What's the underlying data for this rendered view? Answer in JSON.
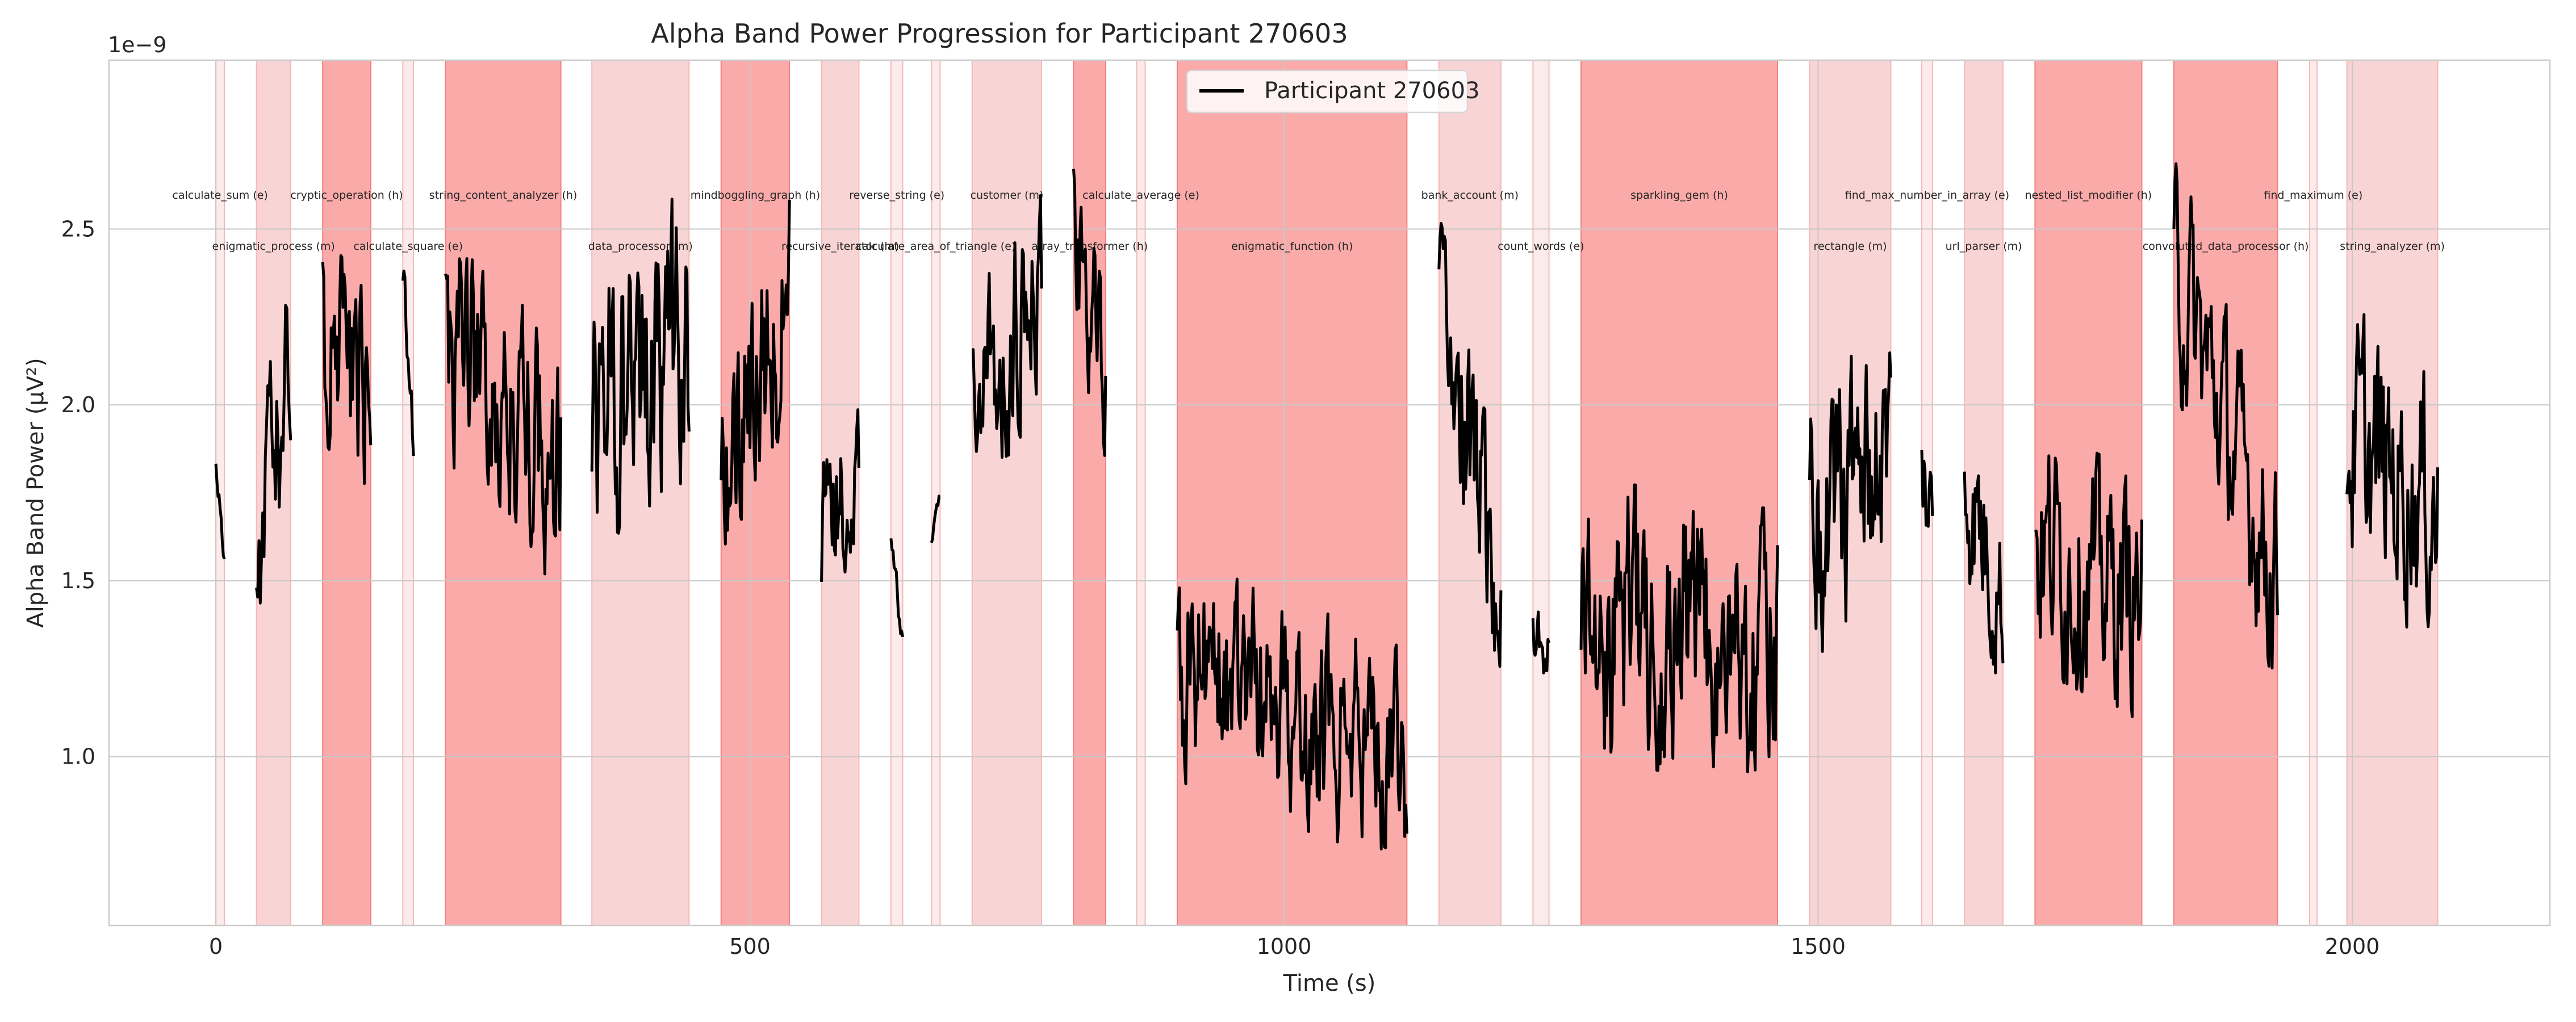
{
  "chart_data": {
    "type": "line",
    "title": "Alpha Band Power Progression for Participant 270603",
    "xlabel": "Time (s)",
    "ylabel": "Alpha Band Power (µV²)",
    "y_offset_label": "1e−9",
    "xlim": [
      -100,
      2185
    ],
    "ylim": [
      0.52,
      2.98
    ],
    "x_ticks": [
      0,
      500,
      1000,
      1500,
      2000
    ],
    "y_ticks": [
      1.0,
      1.5,
      2.0,
      2.5
    ],
    "x_tick_labels": [
      "0",
      "500",
      "1000",
      "1500",
      "2000"
    ],
    "y_tick_labels": [
      "1.0",
      "1.5",
      "2.0",
      "2.5"
    ],
    "grid": true,
    "legend": {
      "placement": "top-center",
      "entries": [
        "Participant 270603"
      ]
    },
    "colors": {
      "line": "#000000",
      "easy": "#fdeaea",
      "medium": "#f9d4d4",
      "hard": "#fbaaaa",
      "hard_edge": "#f28080",
      "grid": "#c8c8c8"
    },
    "tasks": [
      {
        "label": "calculate_sum (e)",
        "start": 0,
        "end": 8,
        "difficulty": "e",
        "row": 0
      },
      {
        "label": "enigmatic_process (m)",
        "start": 38,
        "end": 70,
        "difficulty": "m",
        "row": 1
      },
      {
        "label": "cryptic_operation (h)",
        "start": 100,
        "end": 145,
        "difficulty": "h",
        "row": 0
      },
      {
        "label": "calculate_square (e)",
        "start": 175,
        "end": 185,
        "difficulty": "e",
        "row": 1
      },
      {
        "label": "string_content_analyzer (h)",
        "start": 215,
        "end": 323,
        "difficulty": "h",
        "row": 0
      },
      {
        "label": "data_processor (m)",
        "start": 352,
        "end": 443,
        "difficulty": "m",
        "row": 1
      },
      {
        "label": "mindboggling_graph (h)",
        "start": 473,
        "end": 537,
        "difficulty": "h",
        "row": 0
      },
      {
        "label": "recursive_iterator (m)",
        "start": 567,
        "end": 602,
        "difficulty": "m",
        "row": 1
      },
      {
        "label": "reverse_string (e)",
        "start": 632,
        "end": 643,
        "difficulty": "e",
        "row": 0
      },
      {
        "label": "calculate_area_of_triangle (e)",
        "start": 670,
        "end": 678,
        "difficulty": "e",
        "row": 1
      },
      {
        "label": "customer (m)",
        "start": 708,
        "end": 773,
        "difficulty": "m",
        "row": 0
      },
      {
        "label": "array_transformer (h)",
        "start": 803,
        "end": 833,
        "difficulty": "h",
        "row": 1
      },
      {
        "label": "calculate_average (e)",
        "start": 862,
        "end": 870,
        "difficulty": "e",
        "row": 0
      },
      {
        "label": "enigmatic_function (h)",
        "start": 900,
        "end": 1115,
        "difficulty": "h",
        "row": 1
      },
      {
        "label": "bank_account (m)",
        "start": 1145,
        "end": 1203,
        "difficulty": "m",
        "row": 0
      },
      {
        "label": "count_words (e)",
        "start": 1233,
        "end": 1248,
        "difficulty": "e",
        "row": 1
      },
      {
        "label": "sparkling_gem (h)",
        "start": 1278,
        "end": 1462,
        "difficulty": "h",
        "row": 0
      },
      {
        "label": "rectangle (m)",
        "start": 1492,
        "end": 1568,
        "difficulty": "m",
        "row": 1
      },
      {
        "label": "find_max_number_in_array (e)",
        "start": 1597,
        "end": 1607,
        "difficulty": "e",
        "row": 0
      },
      {
        "label": "url_parser (m)",
        "start": 1637,
        "end": 1673,
        "difficulty": "m",
        "row": 1
      },
      {
        "label": "nested_list_modifier (h)",
        "start": 1703,
        "end": 1803,
        "difficulty": "h",
        "row": 0
      },
      {
        "label": "convoluted_data_processor (h)",
        "start": 1833,
        "end": 1930,
        "difficulty": "h",
        "row": 1
      },
      {
        "label": "find_maximum (e)",
        "start": 1960,
        "end": 1967,
        "difficulty": "e",
        "row": 0
      },
      {
        "label": "string_analyzer (m)",
        "start": 1995,
        "end": 2080,
        "difficulty": "m",
        "row": 1
      }
    ],
    "series": [
      {
        "name": "Participant 270603",
        "segments": [
          {
            "start": 0,
            "end": 8,
            "y0": 1.85,
            "y1": 1.57,
            "vol": 0.04,
            "amp": 0.05,
            "step": 1.0
          },
          {
            "start": 38,
            "end": 70,
            "y0": 1.6,
            "y1": 2.1,
            "vol": 0.3,
            "amp": 0.35,
            "step": 1.2
          },
          {
            "start": 100,
            "end": 145,
            "y0": 2.2,
            "y1": 2.0,
            "vol": 0.3,
            "amp": 0.3,
            "step": 1.0
          },
          {
            "start": 175,
            "end": 185,
            "y0": 2.38,
            "y1": 1.9,
            "vol": 0.08,
            "amp": 0.1,
            "step": 1.0
          },
          {
            "start": 215,
            "end": 323,
            "y0": 2.2,
            "y1": 1.8,
            "vol": 0.32,
            "amp": 0.35,
            "step": 1.0
          },
          {
            "start": 352,
            "end": 443,
            "y0": 2.0,
            "y1": 2.2,
            "vol": 0.4,
            "amp": 0.42,
            "step": 1.0
          },
          {
            "start": 473,
            "end": 537,
            "y0": 1.8,
            "y1": 2.3,
            "vol": 0.3,
            "amp": 0.32,
            "step": 1.0
          },
          {
            "start": 567,
            "end": 602,
            "y0": 1.6,
            "y1": 1.8,
            "vol": 0.22,
            "amp": 0.3,
            "step": 1.0
          },
          {
            "start": 632,
            "end": 643,
            "y0": 1.6,
            "y1": 1.32,
            "vol": 0.05,
            "amp": 0.06,
            "step": 1.0
          },
          {
            "start": 670,
            "end": 678,
            "y0": 1.61,
            "y1": 1.75,
            "vol": 0.02,
            "amp": 0.02,
            "step": 1.0
          },
          {
            "start": 708,
            "end": 773,
            "y0": 2.0,
            "y1": 2.3,
            "vol": 0.3,
            "amp": 0.3,
            "step": 1.0
          },
          {
            "start": 803,
            "end": 833,
            "y0": 2.5,
            "y1": 2.0,
            "vol": 0.25,
            "amp": 0.28,
            "step": 1.0
          },
          {
            "start": 900,
            "end": 1115,
            "y0": 1.25,
            "y1": 1.0,
            "vol": 0.28,
            "amp": 0.32,
            "step": 1.0
          },
          {
            "start": 1145,
            "end": 1203,
            "y0": 2.2,
            "y1": 1.5,
            "vol": 0.3,
            "amp": 0.34,
            "step": 1.0
          },
          {
            "start": 1233,
            "end": 1248,
            "y0": 1.36,
            "y1": 1.3,
            "vol": 0.1,
            "amp": 0.15,
            "step": 1.0
          },
          {
            "start": 1278,
            "end": 1462,
            "y0": 1.4,
            "y1": 1.3,
            "vol": 0.36,
            "amp": 0.4,
            "step": 1.0
          },
          {
            "start": 1492,
            "end": 1568,
            "y0": 1.65,
            "y1": 1.9,
            "vol": 0.35,
            "amp": 0.4,
            "step": 1.0
          },
          {
            "start": 1597,
            "end": 1607,
            "y0": 1.84,
            "y1": 1.65,
            "vol": 0.2,
            "amp": 0.25,
            "step": 1.0
          },
          {
            "start": 1637,
            "end": 1673,
            "y0": 1.8,
            "y1": 1.45,
            "vol": 0.25,
            "amp": 0.28,
            "step": 1.0
          },
          {
            "start": 1703,
            "end": 1803,
            "y0": 1.6,
            "y1": 1.45,
            "vol": 0.32,
            "amp": 0.35,
            "step": 1.0
          },
          {
            "start": 1833,
            "end": 1930,
            "y0": 2.4,
            "y1": 1.5,
            "vol": 0.3,
            "amp": 0.34,
            "step": 1.0
          },
          {
            "start": 1995,
            "end": 2080,
            "y0": 1.9,
            "y1": 1.7,
            "vol": 0.34,
            "amp": 0.4,
            "step": 1.0
          }
        ]
      }
    ]
  }
}
